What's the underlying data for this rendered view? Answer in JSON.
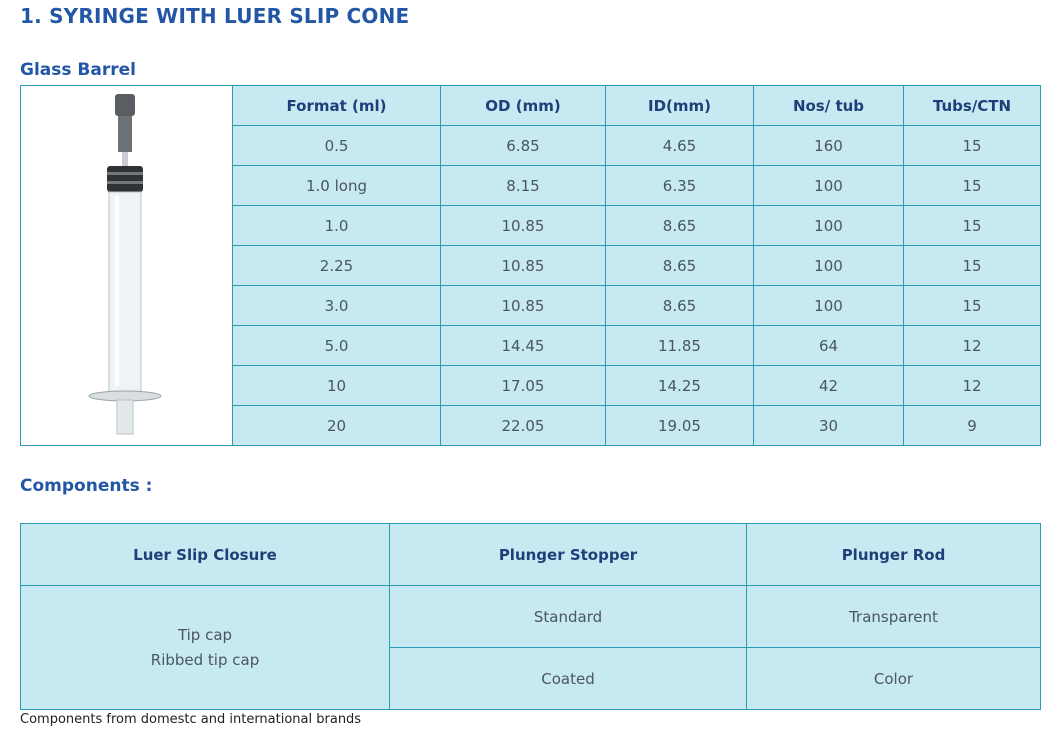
{
  "title": "1. SYRINGE WITH LUER SLIP CONE",
  "section": "Glass Barrel",
  "table": {
    "header": [
      "Format (ml)",
      "OD (mm)",
      "ID(mm)",
      "Nos/ tub",
      "Tubs/CTN"
    ],
    "rows": [
      [
        "0.5",
        "6.85",
        "4.65",
        "160",
        "15"
      ],
      [
        "1.0 long",
        "8.15",
        "6.35",
        "100",
        "15"
      ],
      [
        "1.0",
        "10.85",
        "8.65",
        "100",
        "15"
      ],
      [
        "2.25",
        "10.85",
        "8.65",
        "100",
        "15"
      ],
      [
        "3.0",
        "10.85",
        "8.65",
        "100",
        "15"
      ],
      [
        "5.0",
        "14.45",
        "11.85",
        "64",
        "12"
      ],
      [
        "10",
        "17.05",
        "14.25",
        "42",
        "12"
      ],
      [
        "20",
        "22.05",
        "19.05",
        "30",
        "9"
      ]
    ]
  },
  "components": {
    "heading": "Components :",
    "header": [
      "Luer Slip Closure",
      "Plunger Stopper",
      "Plunger Rod"
    ],
    "closure": [
      "Tip cap",
      "Ribbed tip cap"
    ],
    "stopper": [
      "Standard",
      "Coated"
    ],
    "rod": [
      "Transparent",
      "Color"
    ]
  },
  "note": "Components from domestc and international brands"
}
